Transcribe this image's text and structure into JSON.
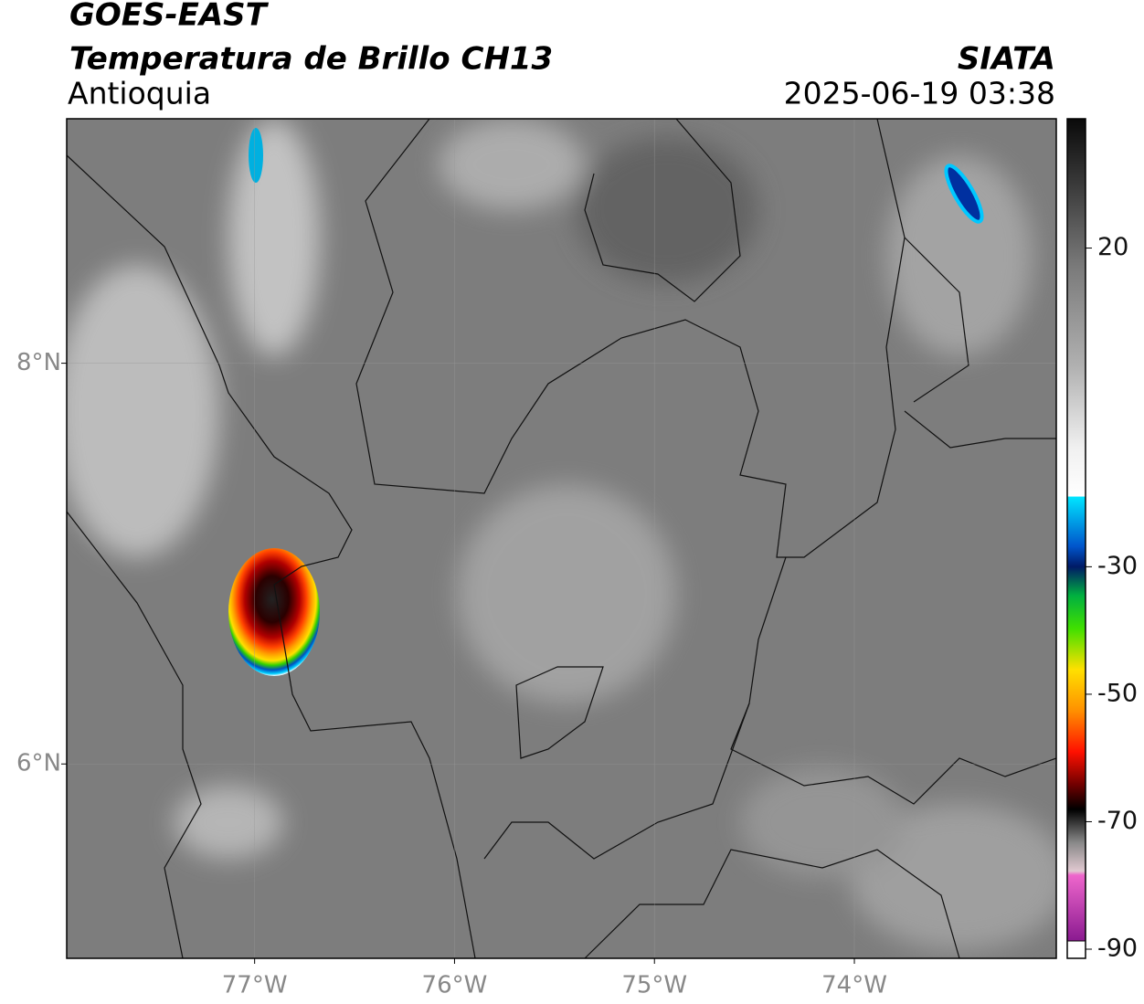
{
  "header": {
    "title": "GOES-EAST",
    "subtitle": "Temperatura de Brillo CH13",
    "region": "Antioquia",
    "source": "SIATA",
    "datetime": "2025-06-19 03:38"
  },
  "map": {
    "xlim": [
      -77.94,
      -72.99
    ],
    "ylim": [
      5.03,
      9.22
    ],
    "xticks": [
      {
        "value": -77,
        "label": "77°W"
      },
      {
        "value": -76,
        "label": "76°W"
      },
      {
        "value": -75,
        "label": "75°W"
      },
      {
        "value": -74,
        "label": "74°W"
      }
    ],
    "yticks": [
      {
        "value": 8,
        "label": "8°N"
      },
      {
        "value": 6,
        "label": "6°N"
      }
    ],
    "grid": true
  },
  "colorbar": {
    "lim": [
      -90,
      40
    ],
    "ticks": [
      20,
      -30,
      -50,
      -70,
      -90
    ]
  }
}
